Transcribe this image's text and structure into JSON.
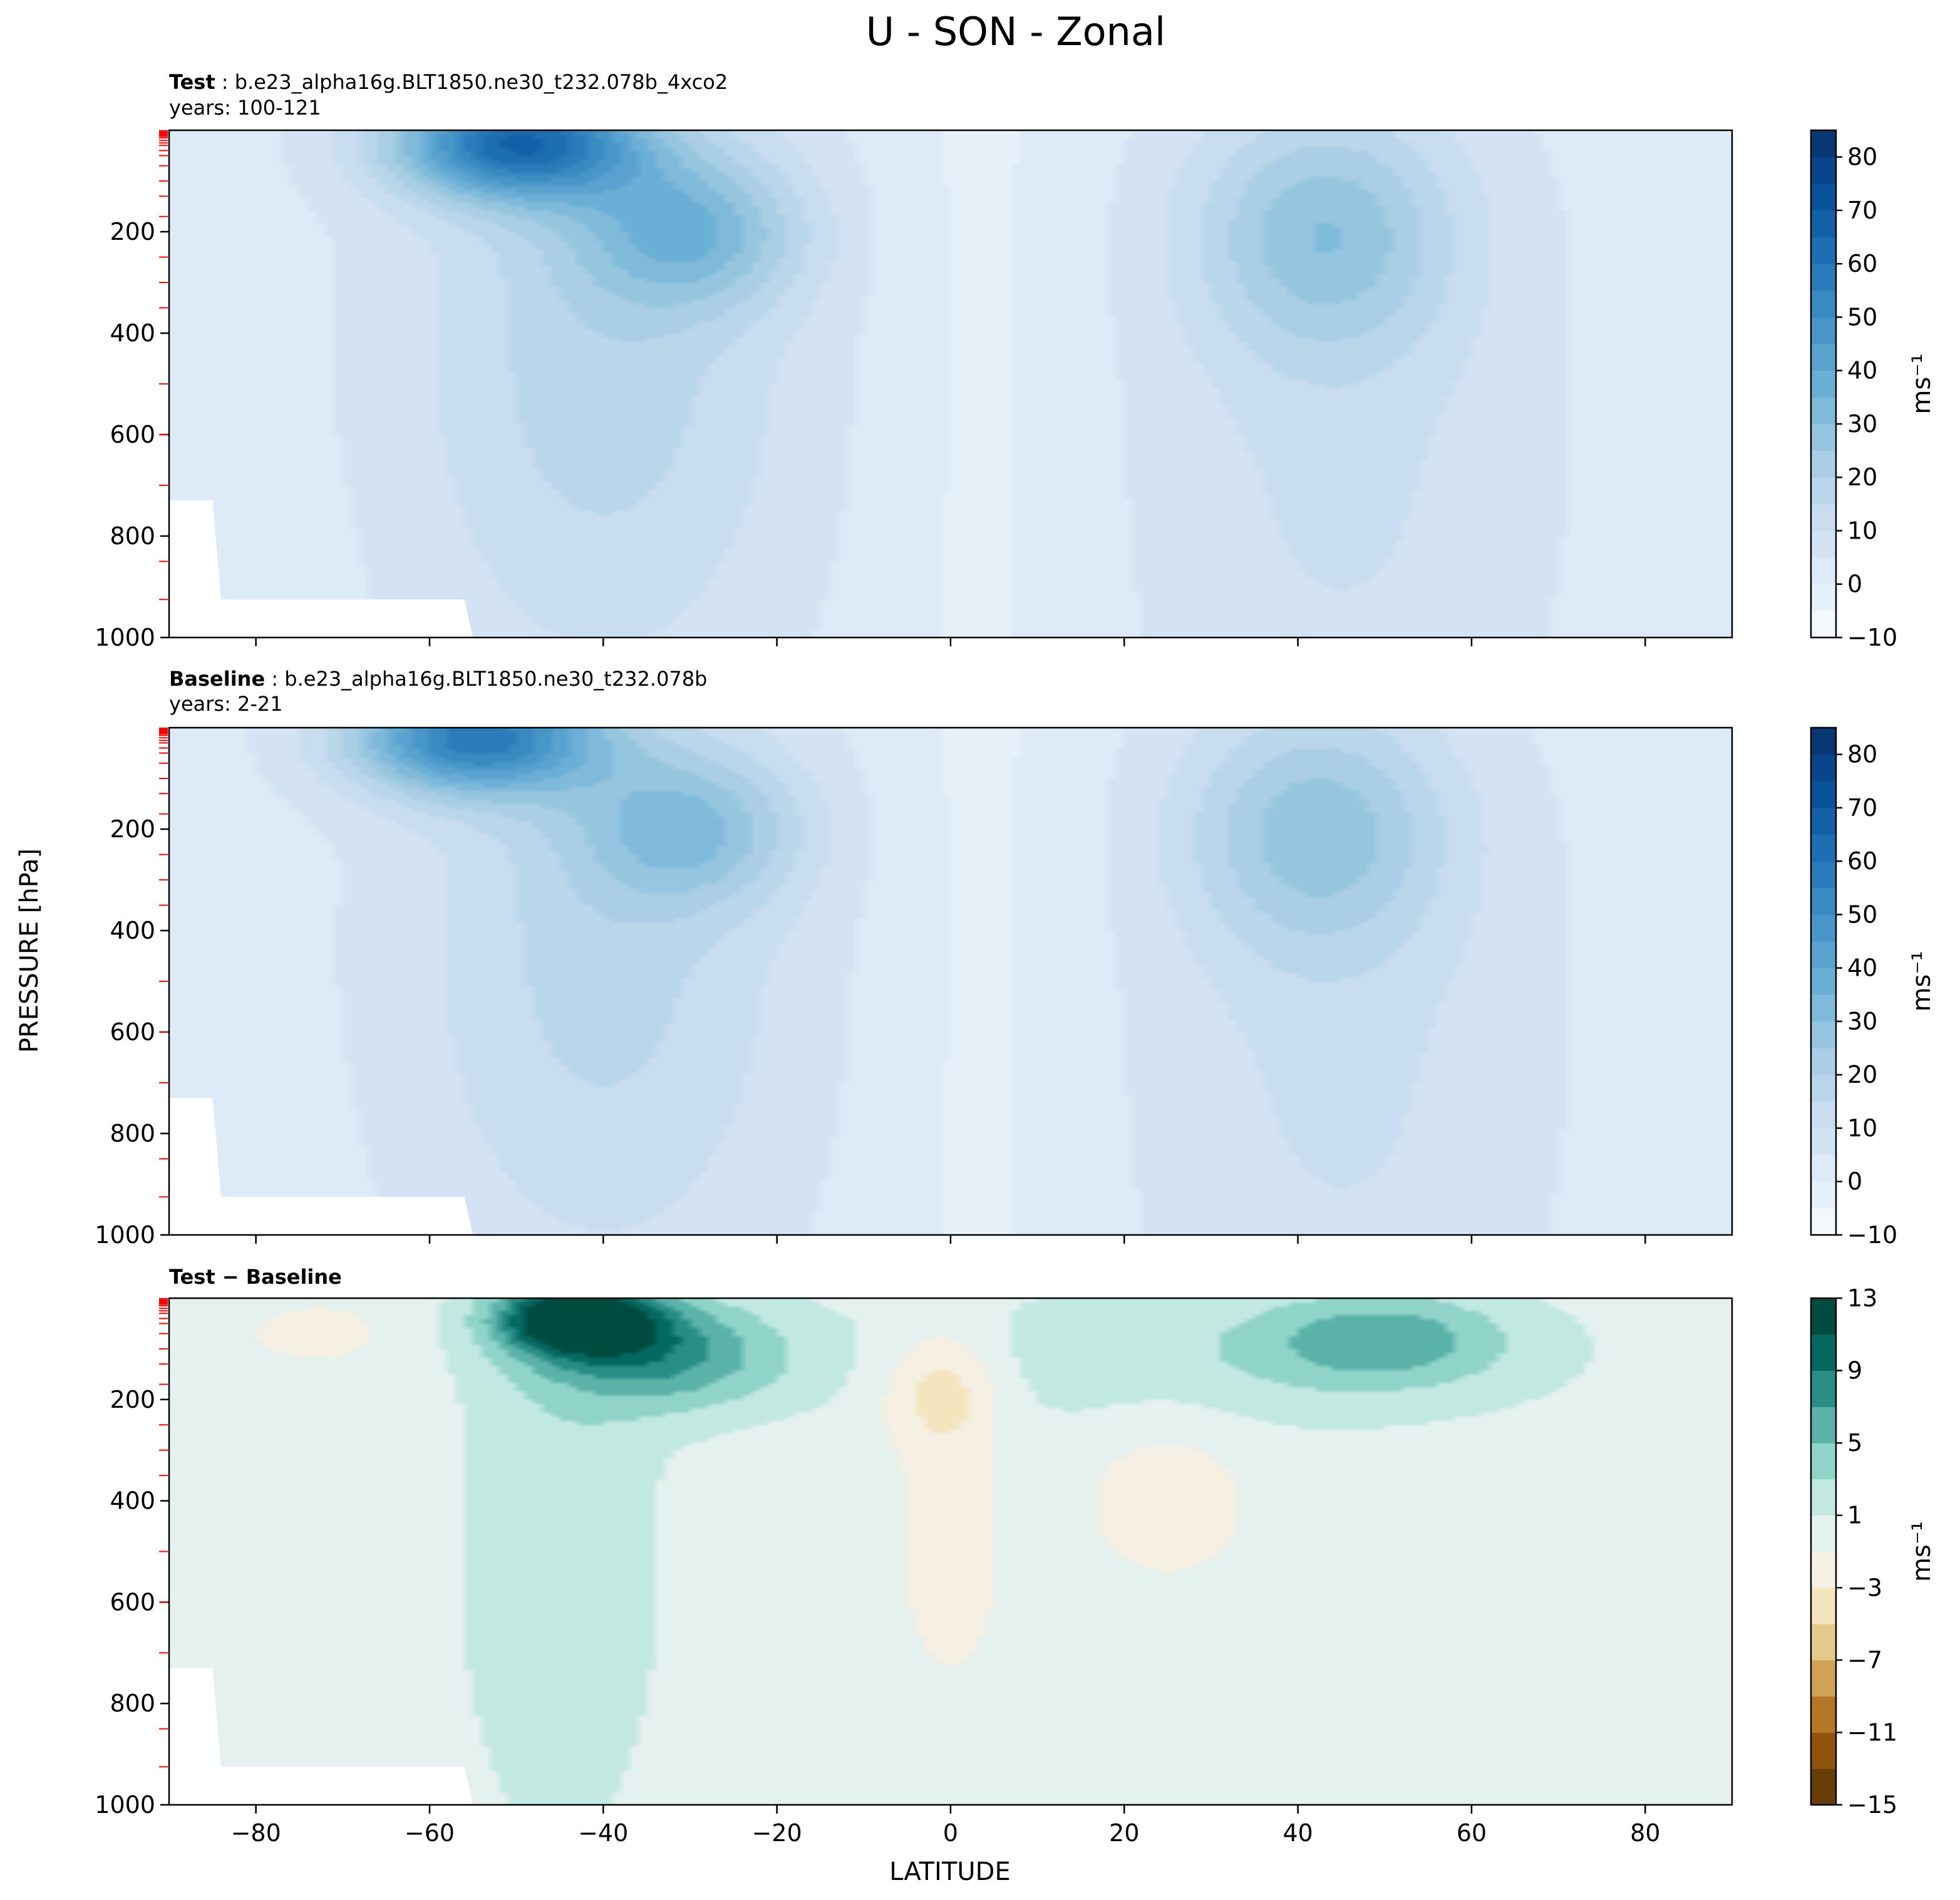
{
  "figure": {
    "suptitle": "U - SON - Zonal",
    "ylabel": "PRESSURE [hPa]",
    "xlabel": "LATITUDE",
    "units": "ms⁻¹"
  },
  "chart_data": [
    {
      "type": "contour",
      "panel": "test",
      "title_bold": "Test",
      "title_rest": ": b.e23_alpha16g.BLT1850.ne30_t232.078b_4xco2",
      "subtitle": "years: 100-121",
      "xlim": [
        -90,
        90
      ],
      "ylim": [
        1000,
        0
      ],
      "yticks": [
        200,
        400,
        600,
        800,
        1000
      ],
      "xticks": [
        -80,
        -60,
        -40,
        -20,
        0,
        20,
        40,
        60,
        80
      ],
      "colorbar": {
        "levels": [
          -10,
          -5,
          0,
          5,
          10,
          15,
          20,
          25,
          30,
          35,
          40,
          45,
          50,
          55,
          60,
          65,
          70,
          75,
          80,
          85
        ],
        "ticklabels": [
          "−10",
          "0",
          "10",
          "20",
          "30",
          "40",
          "50",
          "60",
          "70",
          "80"
        ],
        "tickvalues": [
          -10,
          0,
          10,
          20,
          30,
          40,
          50,
          60,
          70,
          80
        ],
        "cmap": "Blues",
        "label": "ms⁻¹"
      },
      "features": [
        {
          "kind": "jet",
          "lat": -50,
          "p": 25,
          "max": 55
        },
        {
          "kind": "jet",
          "lat": -30,
          "p": 200,
          "max": 45
        },
        {
          "kind": "jet",
          "lat": 43,
          "p": 180,
          "max": 30
        }
      ]
    },
    {
      "type": "contour",
      "panel": "baseline",
      "title_bold": "Baseline",
      "title_rest": ": b.e23_alpha16g.BLT1850.ne30_t232.078b",
      "subtitle": "years: 2-21",
      "xlim": [
        -90,
        90
      ],
      "ylim": [
        1000,
        0
      ],
      "yticks": [
        200,
        400,
        600,
        800,
        1000
      ],
      "xticks": [
        -80,
        -60,
        -40,
        -20,
        0,
        20,
        40,
        60,
        80
      ],
      "colorbar": {
        "levels": [
          -10,
          -5,
          0,
          5,
          10,
          15,
          20,
          25,
          30,
          35,
          40,
          45,
          50,
          55,
          60,
          65,
          70,
          75,
          80,
          85
        ],
        "ticklabels": [
          "−10",
          "0",
          "10",
          "20",
          "30",
          "40",
          "50",
          "60",
          "70",
          "80"
        ],
        "tickvalues": [
          -10,
          0,
          10,
          20,
          30,
          40,
          50,
          60,
          70,
          80
        ],
        "cmap": "Blues",
        "label": "ms⁻¹"
      },
      "features": [
        {
          "kind": "jet",
          "lat": -55,
          "p": 20,
          "max": 50
        },
        {
          "kind": "jet",
          "lat": -30,
          "p": 200,
          "max": 40
        },
        {
          "kind": "jet",
          "lat": 42,
          "p": 200,
          "max": 30
        }
      ]
    },
    {
      "type": "contour",
      "panel": "difference",
      "title_bold": "Test − Baseline",
      "title_rest": "",
      "subtitle": "",
      "xlim": [
        -90,
        90
      ],
      "ylim": [
        1000,
        0
      ],
      "yticks": [
        200,
        400,
        600,
        800,
        1000
      ],
      "xticks": [
        -80,
        -60,
        -40,
        -20,
        0,
        20,
        40,
        60,
        80
      ],
      "colorbar": {
        "levels": [
          -15,
          -13,
          -11,
          -9,
          -7,
          -5,
          -3,
          -1,
          1,
          3,
          5,
          7,
          9,
          11,
          13
        ],
        "ticklabels": [
          "−15",
          "−11",
          "−7",
          "−3",
          "1",
          "5",
          "9",
          "13"
        ],
        "tickvalues": [
          -15,
          -11,
          -7,
          -3,
          1,
          5,
          9,
          13
        ],
        "cmap": "BrBG",
        "label": "ms⁻¹"
      },
      "features": [
        {
          "kind": "max",
          "lat": -45,
          "p": 40,
          "value": 13
        },
        {
          "kind": "min",
          "lat": -2,
          "p": 170,
          "value": -3
        },
        {
          "kind": "max",
          "lat": 50,
          "p": 80,
          "value": 7
        }
      ]
    }
  ]
}
